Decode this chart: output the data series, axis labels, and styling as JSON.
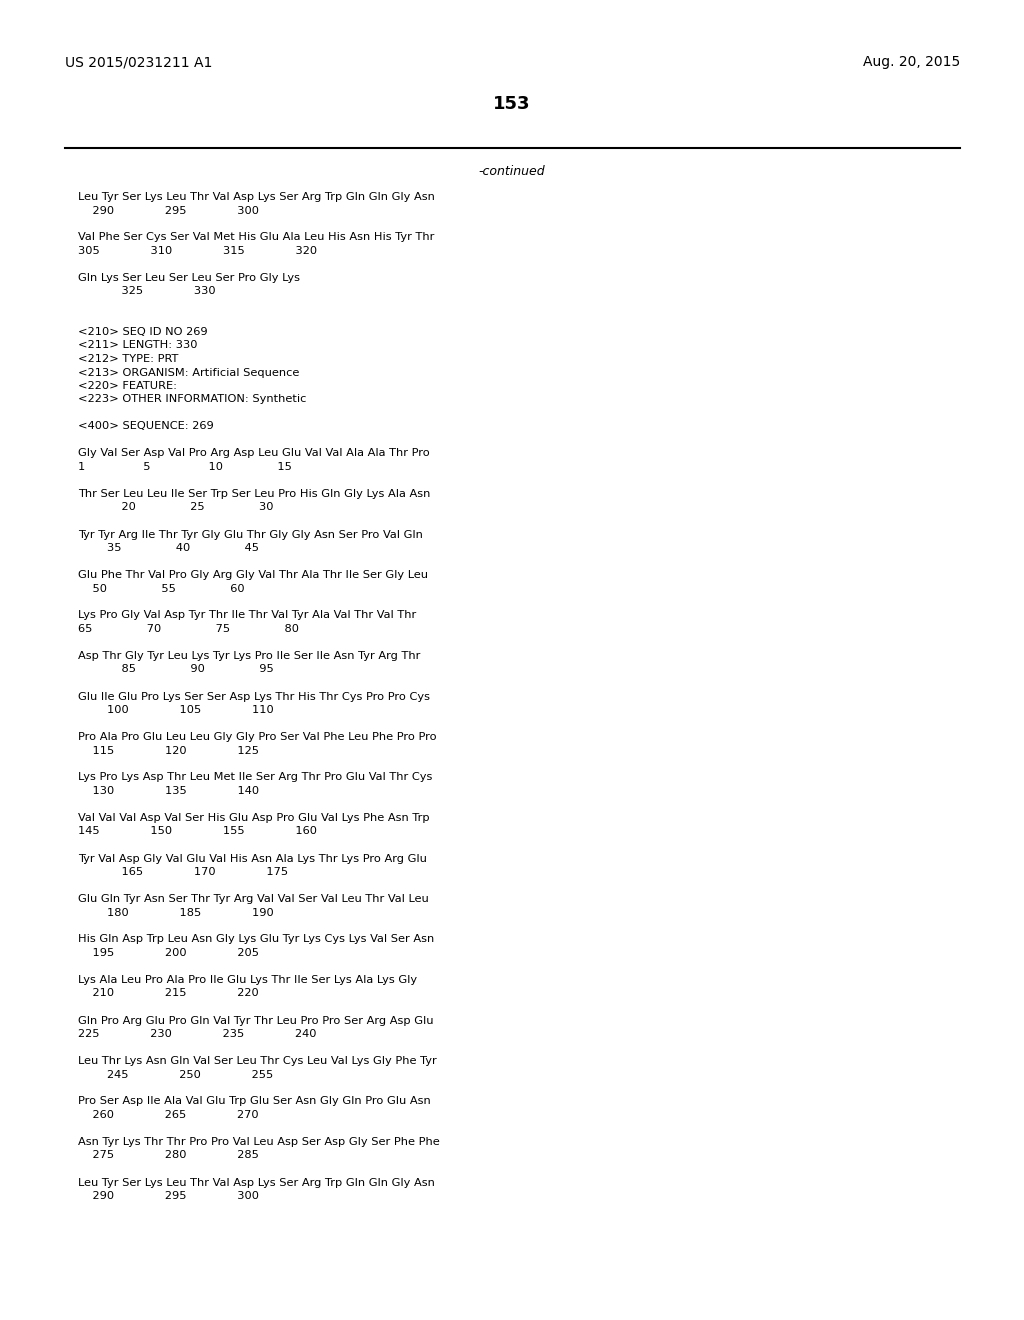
{
  "header_left": "US 2015/0231211 A1",
  "header_right": "Aug. 20, 2015",
  "page_number": "153",
  "continued_text": "-continued",
  "background_color": "#ffffff",
  "text_color": "#000000",
  "content": [
    "Leu Tyr Ser Lys Leu Thr Val Asp Lys Ser Arg Trp Gln Gln Gly Asn",
    "    290              295              300",
    "",
    "Val Phe Ser Cys Ser Val Met His Glu Ala Leu His Asn His Tyr Thr",
    "305              310              315              320",
    "",
    "Gln Lys Ser Leu Ser Leu Ser Pro Gly Lys",
    "            325              330",
    "",
    "",
    "<210> SEQ ID NO 269",
    "<211> LENGTH: 330",
    "<212> TYPE: PRT",
    "<213> ORGANISM: Artificial Sequence",
    "<220> FEATURE:",
    "<223> OTHER INFORMATION: Synthetic",
    "",
    "<400> SEQUENCE: 269",
    "",
    "Gly Val Ser Asp Val Pro Arg Asp Leu Glu Val Val Ala Ala Thr Pro",
    "1                5                10               15",
    "",
    "Thr Ser Leu Leu Ile Ser Trp Ser Leu Pro His Gln Gly Lys Ala Asn",
    "            20               25               30",
    "",
    "Tyr Tyr Arg Ile Thr Tyr Gly Glu Thr Gly Gly Asn Ser Pro Val Gln",
    "        35               40               45",
    "",
    "Glu Phe Thr Val Pro Gly Arg Gly Val Thr Ala Thr Ile Ser Gly Leu",
    "    50               55               60",
    "",
    "Lys Pro Gly Val Asp Tyr Thr Ile Thr Val Tyr Ala Val Thr Val Thr",
    "65               70               75               80",
    "",
    "Asp Thr Gly Tyr Leu Lys Tyr Lys Pro Ile Ser Ile Asn Tyr Arg Thr",
    "            85               90               95",
    "",
    "Glu Ile Glu Pro Lys Ser Ser Asp Lys Thr His Thr Cys Pro Pro Cys",
    "        100              105              110",
    "",
    "Pro Ala Pro Glu Leu Leu Gly Gly Pro Ser Val Phe Leu Phe Pro Pro",
    "    115              120              125",
    "",
    "Lys Pro Lys Asp Thr Leu Met Ile Ser Arg Thr Pro Glu Val Thr Cys",
    "    130              135              140",
    "",
    "Val Val Val Asp Val Ser His Glu Asp Pro Glu Val Lys Phe Asn Trp",
    "145              150              155              160",
    "",
    "Tyr Val Asp Gly Val Glu Val His Asn Ala Lys Thr Lys Pro Arg Glu",
    "            165              170              175",
    "",
    "Glu Gln Tyr Asn Ser Thr Tyr Arg Val Val Ser Val Leu Thr Val Leu",
    "        180              185              190",
    "",
    "His Gln Asp Trp Leu Asn Gly Lys Glu Tyr Lys Cys Lys Val Ser Asn",
    "    195              200              205",
    "",
    "Lys Ala Leu Pro Ala Pro Ile Glu Lys Thr Ile Ser Lys Ala Lys Gly",
    "    210              215              220",
    "",
    "Gln Pro Arg Glu Pro Gln Val Tyr Thr Leu Pro Pro Ser Arg Asp Glu",
    "225              230              235              240",
    "",
    "Leu Thr Lys Asn Gln Val Ser Leu Thr Cys Leu Val Lys Gly Phe Tyr",
    "        245              250              255",
    "",
    "Pro Ser Asp Ile Ala Val Glu Trp Glu Ser Asn Gly Gln Pro Glu Asn",
    "    260              265              270",
    "",
    "Asn Tyr Lys Thr Thr Pro Pro Val Leu Asp Ser Asp Gly Ser Phe Phe",
    "    275              280              285",
    "",
    "Leu Tyr Ser Lys Leu Thr Val Asp Lys Ser Arg Trp Gln Gln Gly Asn",
    "    290              295              300"
  ]
}
